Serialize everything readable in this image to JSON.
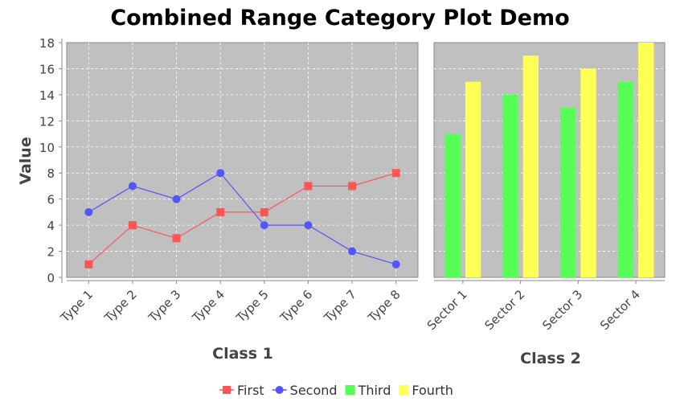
{
  "chart_data": {
    "title": "Combined Range Category Plot Demo",
    "ylabel": "Value",
    "ylim": [
      0,
      18
    ],
    "yticks": [
      0,
      2,
      4,
      6,
      8,
      10,
      12,
      14,
      16,
      18
    ],
    "grid": true,
    "plot_background": "#c0c0c0",
    "legend_placement": "bottom",
    "legend": [
      {
        "name": "First",
        "color": "#ff5555",
        "marker": "square-line"
      },
      {
        "name": "Second",
        "color": "#5555ff",
        "marker": "circle-line"
      },
      {
        "name": "Third",
        "color": "#55ff55",
        "marker": "box"
      },
      {
        "name": "Fourth",
        "color": "#ffff55",
        "marker": "box"
      }
    ],
    "subplots": [
      {
        "type": "line",
        "xlabel": "Class 1",
        "categories": [
          "Type 1",
          "Type 2",
          "Type 3",
          "Type 4",
          "Type 5",
          "Type 6",
          "Type 7",
          "Type 8"
        ],
        "series": [
          {
            "name": "First",
            "color": "#ff5555",
            "values": [
              1.0,
              4.0,
              3.0,
              5.0,
              5.0,
              7.0,
              7.0,
              8.0
            ]
          },
          {
            "name": "Second",
            "color": "#5555ff",
            "values": [
              5.0,
              7.0,
              6.0,
              8.0,
              4.0,
              4.0,
              2.0,
              1.0
            ]
          }
        ]
      },
      {
        "type": "bar",
        "xlabel": "Class 2",
        "categories": [
          "Sector 1",
          "Sector 2",
          "Sector 3",
          "Sector 4"
        ],
        "series": [
          {
            "name": "Third",
            "color": "#55ff55",
            "values": [
              11.0,
              14.0,
              13.0,
              15.0
            ]
          },
          {
            "name": "Fourth",
            "color": "#ffff55",
            "values": [
              15.0,
              17.0,
              16.0,
              18.0
            ]
          }
        ]
      }
    ]
  }
}
